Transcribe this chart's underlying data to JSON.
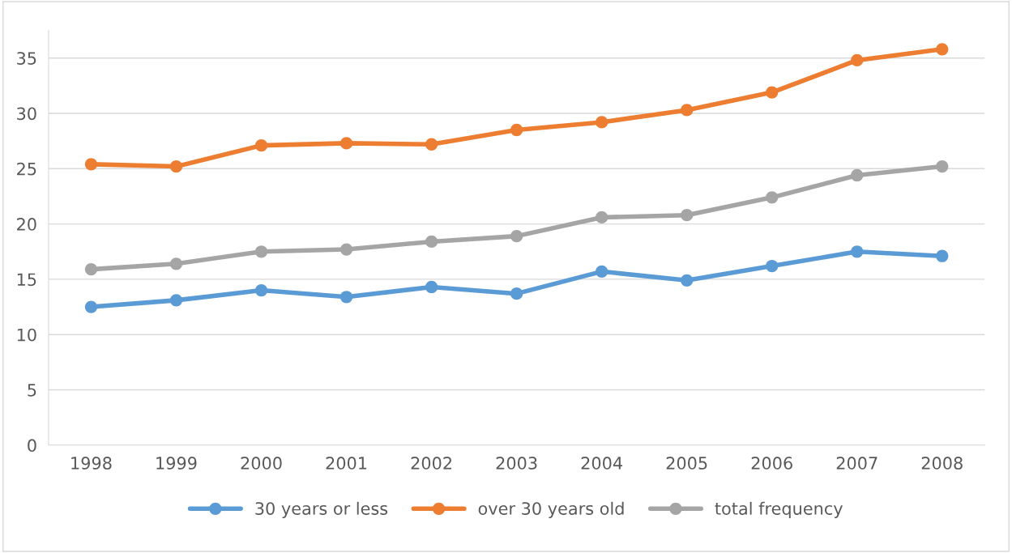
{
  "chart_data": {
    "type": "line",
    "categories": [
      "1998",
      "1999",
      "2000",
      "2001",
      "2002",
      "2003",
      "2004",
      "2005",
      "2006",
      "2007",
      "2008"
    ],
    "series": [
      {
        "name": "30 years or less",
        "color": "#5b9bd5",
        "values": [
          12.5,
          13.1,
          14.0,
          13.4,
          14.3,
          13.7,
          15.7,
          14.9,
          16.2,
          17.5,
          17.1
        ]
      },
      {
        "name": "over 30 years old",
        "color": "#ed7d31",
        "values": [
          25.4,
          25.2,
          27.1,
          27.3,
          27.2,
          28.5,
          29.2,
          30.3,
          31.9,
          34.8,
          35.8
        ]
      },
      {
        "name": "total frequency",
        "color": "#a5a5a5",
        "values": [
          15.9,
          16.4,
          17.5,
          17.7,
          18.4,
          18.9,
          20.6,
          20.8,
          22.4,
          24.4,
          25.2
        ]
      }
    ],
    "ylim": [
      0,
      37.5
    ],
    "yticks": [
      0,
      5,
      10,
      15,
      20,
      25,
      30,
      35
    ],
    "grid": "y",
    "legend": "bottom",
    "marker": "circle",
    "line_style": "solid"
  }
}
